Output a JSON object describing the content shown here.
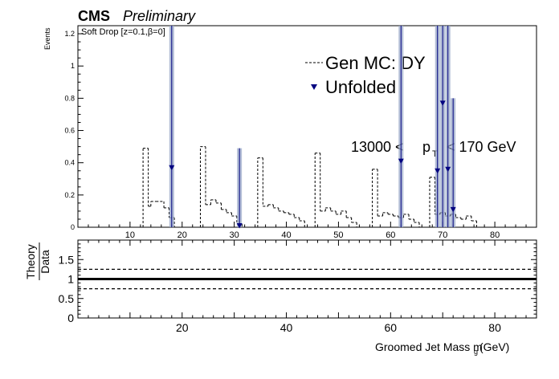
{
  "header": {
    "experiment": "CMS",
    "status": "Preliminary"
  },
  "chart_data": {
    "type": "histogram",
    "annotation": "Soft Drop [z=0.1,β=0]",
    "pt_range_label": {
      "lower": "13000 <",
      "var": "p",
      "var_sub": "T",
      "upper": "< 170 GeV"
    },
    "legend": {
      "placement": "top-right",
      "entries": [
        {
          "label": "Gen MC: DY",
          "style": "dashed-line",
          "color": "#000000"
        },
        {
          "label": "Unfolded",
          "style": "triangle-marker",
          "color": "#000080"
        }
      ]
    },
    "top_panel": {
      "ylabel": "Events",
      "xlim": [
        0,
        88
      ],
      "ylim": [
        0,
        1.25
      ],
      "x_ticks": [
        10,
        20,
        30,
        40,
        50,
        60,
        70,
        80
      ],
      "y_ticks": [
        0,
        0.2,
        0.4,
        0.6,
        0.8,
        1,
        1.2
      ],
      "series": [
        {
          "name": "Gen MC: DY",
          "style": "dashed",
          "color": "#000000",
          "bins": [
            [
              12.5,
              13.5,
              0.49
            ],
            [
              13.5,
              14,
              0.13
            ],
            [
              14,
              15,
              0.16
            ],
            [
              15,
              16.5,
              0.16
            ],
            [
              16.5,
              17.5,
              0.12
            ],
            [
              17.5,
              18.5,
              0.06
            ],
            [
              23.5,
              24.5,
              0.5
            ],
            [
              24.5,
              25.5,
              0.14
            ],
            [
              25.5,
              26.5,
              0.17
            ],
            [
              26.5,
              27.5,
              0.15
            ],
            [
              27.5,
              28.5,
              0.11
            ],
            [
              28.5,
              29.5,
              0.09
            ],
            [
              29.5,
              30.5,
              0.07
            ],
            [
              30.5,
              31.5,
              0.02
            ],
            [
              34.5,
              35.5,
              0.43
            ],
            [
              35.5,
              36.5,
              0.13
            ],
            [
              36.5,
              37.5,
              0.14
            ],
            [
              37.5,
              38.5,
              0.12
            ],
            [
              38.5,
              39.5,
              0.1
            ],
            [
              39.5,
              40.5,
              0.09
            ],
            [
              40.5,
              41.5,
              0.08
            ],
            [
              41.5,
              42.5,
              0.06
            ],
            [
              42.5,
              43.5,
              0.04
            ],
            [
              45.5,
              46.5,
              0.46
            ],
            [
              46.5,
              47.5,
              0.1
            ],
            [
              47.5,
              48.5,
              0.12
            ],
            [
              48.5,
              49.5,
              0.1
            ],
            [
              49.5,
              50.5,
              0.08
            ],
            [
              50.5,
              51.5,
              0.1
            ],
            [
              51.5,
              52.5,
              0.06
            ],
            [
              52.5,
              53.5,
              0.03
            ],
            [
              56.5,
              57.5,
              0.36
            ],
            [
              57.5,
              58.5,
              0.07
            ],
            [
              58.5,
              59.5,
              0.09
            ],
            [
              59.5,
              60.5,
              0.08
            ],
            [
              60.5,
              61.5,
              0.07
            ],
            [
              61.5,
              62.5,
              0.06
            ],
            [
              62.5,
              63.5,
              0.08
            ],
            [
              63.5,
              64.5,
              0.05
            ],
            [
              64.5,
              65.5,
              0.03
            ],
            [
              67.5,
              68.5,
              0.31
            ],
            [
              68.5,
              69.5,
              0.08
            ],
            [
              69.5,
              70.5,
              0.09
            ],
            [
              70.5,
              71.5,
              0.07
            ],
            [
              71.5,
              72.5,
              0.08
            ],
            [
              72.5,
              73.5,
              0.06
            ],
            [
              73.5,
              74.5,
              0.05
            ],
            [
              74.5,
              75.5,
              0.07
            ],
            [
              75.5,
              76.5,
              0.04
            ]
          ]
        },
        {
          "name": "Unfolded",
          "style": "marker",
          "color": "#000080",
          "points": [
            {
              "x": 18,
              "y": 0.37,
              "err_low": 0.0,
              "err_high": 1.25
            },
            {
              "x": 31,
              "y": 0.01,
              "err_low": 0.0,
              "err_high": 0.49
            },
            {
              "x": 62,
              "y": 0.41,
              "err_low": 0.0,
              "err_high": 1.25
            },
            {
              "x": 69,
              "y": 0.35,
              "err_low": 0.0,
              "err_high": 1.25
            },
            {
              "x": 70,
              "y": 0.77,
              "err_low": 0.0,
              "err_high": 1.25
            },
            {
              "x": 71,
              "y": 0.36,
              "err_low": 0.0,
              "err_high": 1.25
            },
            {
              "x": 72,
              "y": 0.11,
              "err_low": 0.0,
              "err_high": 0.8
            }
          ]
        }
      ]
    },
    "ratio_panel": {
      "ylabel_num": "Theory",
      "ylabel_den": "Data",
      "xlabel": "Groomed Jet Mass m",
      "xlabel_sub": "g",
      "xlabel_unit": "(GeV)",
      "xlim": [
        0,
        88
      ],
      "ylim": [
        0,
        2
      ],
      "x_ticks": [
        20,
        40,
        60,
        80
      ],
      "y_ticks": [
        0,
        0.5,
        1,
        1.5
      ],
      "lines": [
        {
          "y": 1.0,
          "style": "solid"
        },
        {
          "y": 1.25,
          "style": "dashed"
        },
        {
          "y": 0.75,
          "style": "dashed"
        }
      ]
    }
  }
}
